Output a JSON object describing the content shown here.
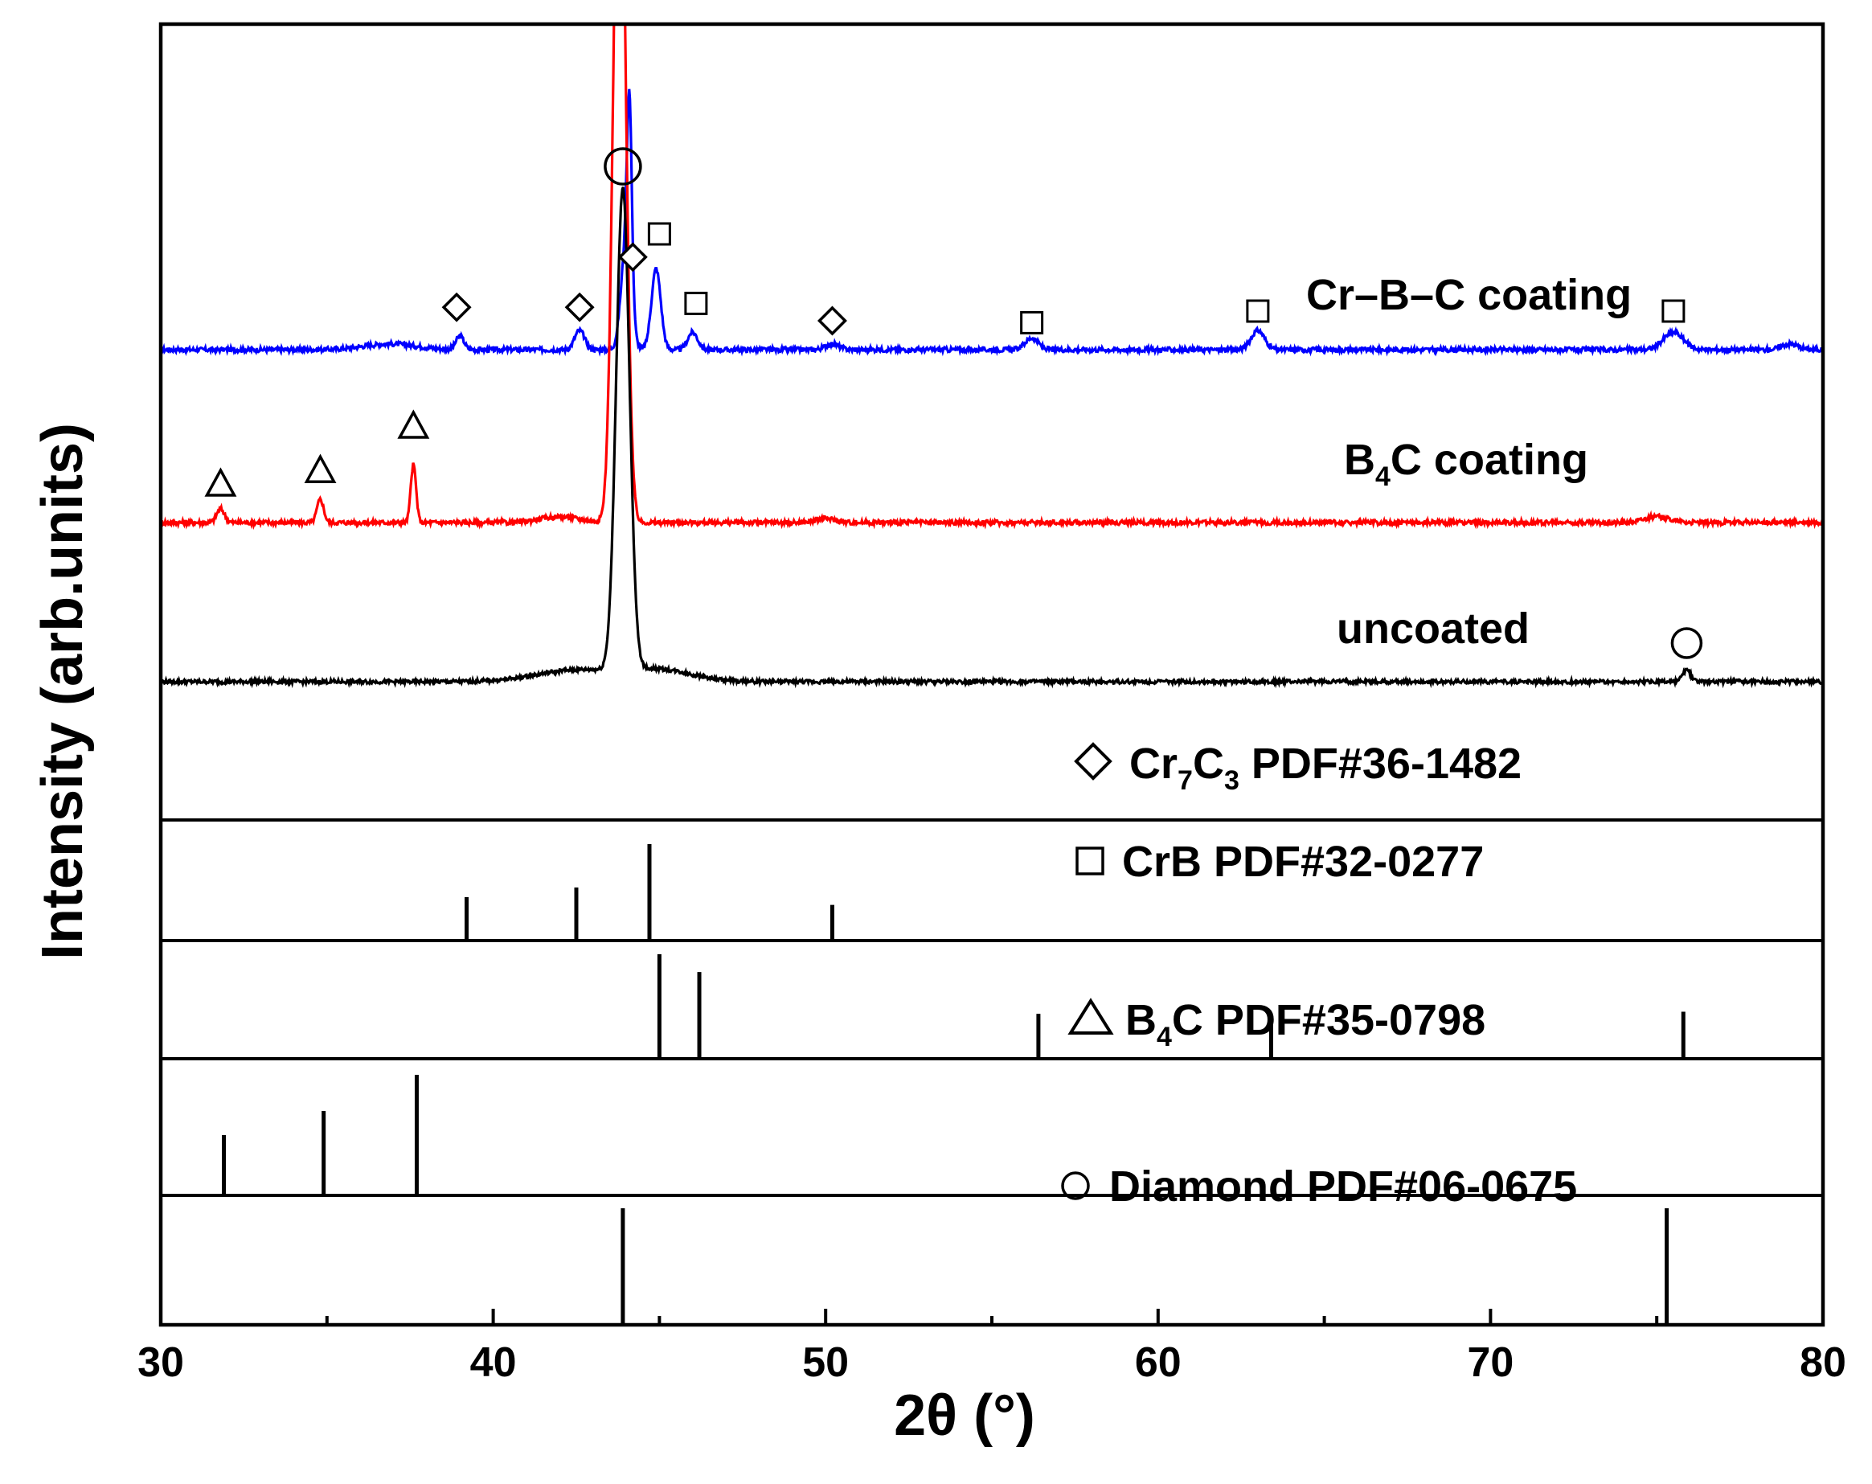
{
  "chart_data": {
    "type": "line",
    "xlabel": "2θ (°)",
    "ylabel": "Intensity (arb.units)",
    "xlim": [
      30,
      80
    ],
    "xticks": [
      "30",
      "40",
      "50",
      "60",
      "70",
      "80"
    ],
    "series": [
      {
        "name": "Cr–B–C coating",
        "color": "#0000ff",
        "baseline": 0.0,
        "noise": 0.012,
        "peaks": [
          {
            "x": 36.9,
            "h": 0.03,
            "w": 0.8
          },
          {
            "x": 39.0,
            "h": 0.07,
            "w": 0.12
          },
          {
            "x": 42.6,
            "h": 0.1,
            "w": 0.15
          },
          {
            "x": 44.0,
            "h": 0.55,
            "w": 0.15
          },
          {
            "x": 44.1,
            "h": 0.9,
            "w": 0.07
          },
          {
            "x": 44.9,
            "h": 0.42,
            "w": 0.14
          },
          {
            "x": 46.0,
            "h": 0.09,
            "w": 0.15
          },
          {
            "x": 50.2,
            "h": 0.03,
            "w": 0.2
          },
          {
            "x": 56.2,
            "h": 0.06,
            "w": 0.2
          },
          {
            "x": 63.0,
            "h": 0.1,
            "w": 0.2
          },
          {
            "x": 75.5,
            "h": 0.09,
            "w": 0.3
          },
          {
            "x": 79.0,
            "h": 0.03,
            "w": 0.25
          }
        ],
        "markers": [
          {
            "x": 38.9,
            "y": 0.22,
            "symbol": "diamond"
          },
          {
            "x": 42.6,
            "y": 0.22,
            "symbol": "diamond"
          },
          {
            "x": 44.2,
            "y": 0.48,
            "symbol": "diamond"
          },
          {
            "x": 50.2,
            "y": 0.15,
            "symbol": "diamond"
          },
          {
            "x": 43.9,
            "y": 0.95,
            "symbol": "circle"
          },
          {
            "x": 45.0,
            "y": 0.6,
            "symbol": "square"
          },
          {
            "x": 46.1,
            "y": 0.24,
            "symbol": "square"
          },
          {
            "x": 56.2,
            "y": 0.14,
            "symbol": "square"
          },
          {
            "x": 63.0,
            "y": 0.2,
            "symbol": "square"
          },
          {
            "x": 75.5,
            "y": 0.2,
            "symbol": "square"
          }
        ],
        "label": "Cr–B–C coating"
      },
      {
        "name": "B4C coating",
        "color": "#ff0000",
        "baseline": 0.0,
        "noise": 0.012,
        "peaks": [
          {
            "x": 31.8,
            "h": 0.07,
            "w": 0.12
          },
          {
            "x": 34.8,
            "h": 0.12,
            "w": 0.1
          },
          {
            "x": 37.6,
            "h": 0.3,
            "w": 0.08
          },
          {
            "x": 42.0,
            "h": 0.03,
            "w": 0.6
          },
          {
            "x": 43.8,
            "h": 4.0,
            "w": 0.18
          },
          {
            "x": 50.0,
            "h": 0.02,
            "w": 0.3
          },
          {
            "x": 75.0,
            "h": 0.03,
            "w": 0.4
          }
        ],
        "markers": [
          {
            "x": 31.8,
            "y": 0.2,
            "symbol": "triangle"
          },
          {
            "x": 34.8,
            "y": 0.27,
            "symbol": "triangle"
          },
          {
            "x": 37.6,
            "y": 0.5,
            "symbol": "triangle"
          }
        ],
        "label": "B4C coating"
      },
      {
        "name": "uncoated",
        "color": "#000000",
        "baseline": 0.0,
        "noise": 0.01,
        "peaks": [
          {
            "x": 42.5,
            "h": 0.06,
            "w": 1.2
          },
          {
            "x": 43.9,
            "h": 2.5,
            "w": 0.2
          },
          {
            "x": 45.0,
            "h": 0.06,
            "w": 1.0
          },
          {
            "x": 75.9,
            "h": 0.06,
            "w": 0.12
          }
        ],
        "markers": [
          {
            "x": 75.9,
            "y": 0.2,
            "symbol": "circle"
          }
        ],
        "label": "uncoated"
      }
    ],
    "references": [
      {
        "symbol": "diamond",
        "label_main": "Cr",
        "label_sub1": "7",
        "label_mid": "C",
        "label_sub2": "3",
        "label_tail": " PDF#36-1482",
        "lines": [
          {
            "x": 39.2,
            "h": 0.45
          },
          {
            "x": 42.5,
            "h": 0.55
          },
          {
            "x": 44.7,
            "h": 1.0
          },
          {
            "x": 50.2,
            "h": 0.37
          }
        ]
      },
      {
        "symbol": "square",
        "label": "CrB  PDF#32-0277",
        "lines": [
          {
            "x": 45.0,
            "h": 1.0
          },
          {
            "x": 46.2,
            "h": 0.83
          },
          {
            "x": 56.4,
            "h": 0.43
          },
          {
            "x": 63.4,
            "h": 0.33
          },
          {
            "x": 75.8,
            "h": 0.45
          }
        ]
      },
      {
        "symbol": "triangle",
        "label_main": "B",
        "label_sub1": "4",
        "label_mid": "C  PDF#35-0798",
        "lines": [
          {
            "x": 31.9,
            "h": 0.5
          },
          {
            "x": 34.9,
            "h": 0.7
          },
          {
            "x": 37.7,
            "h": 1.0
          }
        ]
      },
      {
        "symbol": "circle",
        "label": "Diamond  PDF#06-0675",
        "lines": [
          {
            "x": 43.9,
            "h": 1.0
          },
          {
            "x": 75.3,
            "h": 1.0
          }
        ]
      }
    ]
  }
}
